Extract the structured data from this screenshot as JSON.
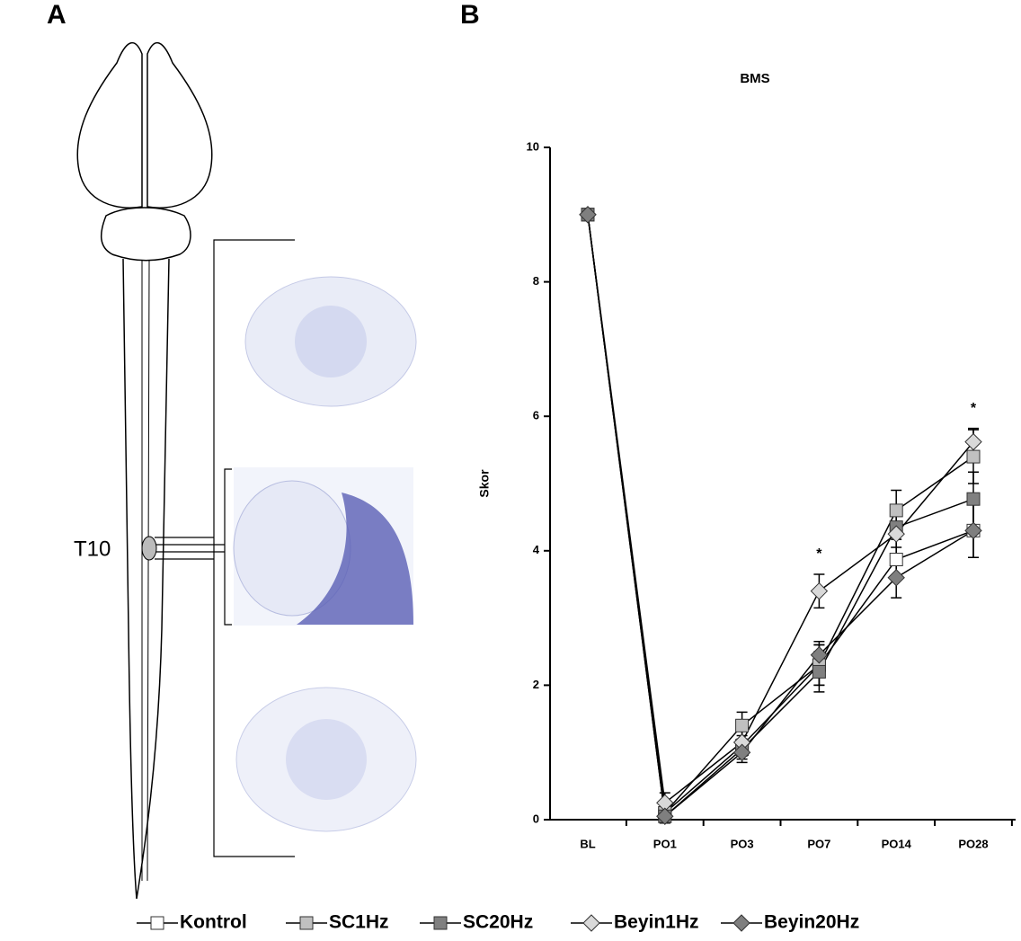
{
  "panel_labels": [
    "A",
    "B"
  ],
  "diagram": {
    "label": "T10"
  },
  "chart_data": {
    "type": "line",
    "title": "BMS",
    "ylabel": "Skor",
    "categories": [
      "BL",
      "PO1",
      "PO3",
      "PO7",
      "PO14",
      "PO28"
    ],
    "ylim": [
      0,
      10
    ],
    "yticks": [
      0,
      2,
      4,
      6,
      8,
      10
    ],
    "series": [
      {
        "name": "Kontrol",
        "color": "#ffffff",
        "marker": "square",
        "values": [
          9,
          0.1,
          1.1,
          2.3,
          3.87,
          4.3
        ],
        "errors": [
          0,
          0.1,
          0.15,
          0.3,
          0.3,
          0.4
        ]
      },
      {
        "name": "SC1Hz",
        "color": "#c0c0c0",
        "marker": "square",
        "values": [
          9,
          0.1,
          1.4,
          2.3,
          4.6,
          5.4
        ],
        "errors": [
          0,
          0.1,
          0.2,
          0.3,
          0.3,
          0.4
        ]
      },
      {
        "name": "SC20Hz",
        "color": "#808080",
        "marker": "square",
        "values": [
          9,
          0.05,
          1.05,
          2.2,
          4.35,
          4.77
        ],
        "errors": [
          0,
          0.1,
          0.15,
          0.3,
          0.3,
          0.4
        ]
      },
      {
        "name": "Beyin1Hz",
        "color": "#d9d9d9",
        "marker": "diamond",
        "values": [
          9,
          0.25,
          1.15,
          3.4,
          4.25,
          5.62
        ],
        "errors": [
          0,
          0.15,
          0.2,
          0.25,
          0.3,
          0.2
        ]
      },
      {
        "name": "Beyin20Hz",
        "color": "#7f7f7f",
        "marker": "diamond",
        "values": [
          9,
          0.05,
          1.0,
          2.45,
          3.6,
          4.3
        ],
        "errors": [
          0,
          0.1,
          0.15,
          0.2,
          0.3,
          0.4
        ]
      }
    ],
    "annotations": [
      {
        "text": "*",
        "category": "PO7"
      },
      {
        "text": "*",
        "category": "PO28"
      }
    ]
  }
}
